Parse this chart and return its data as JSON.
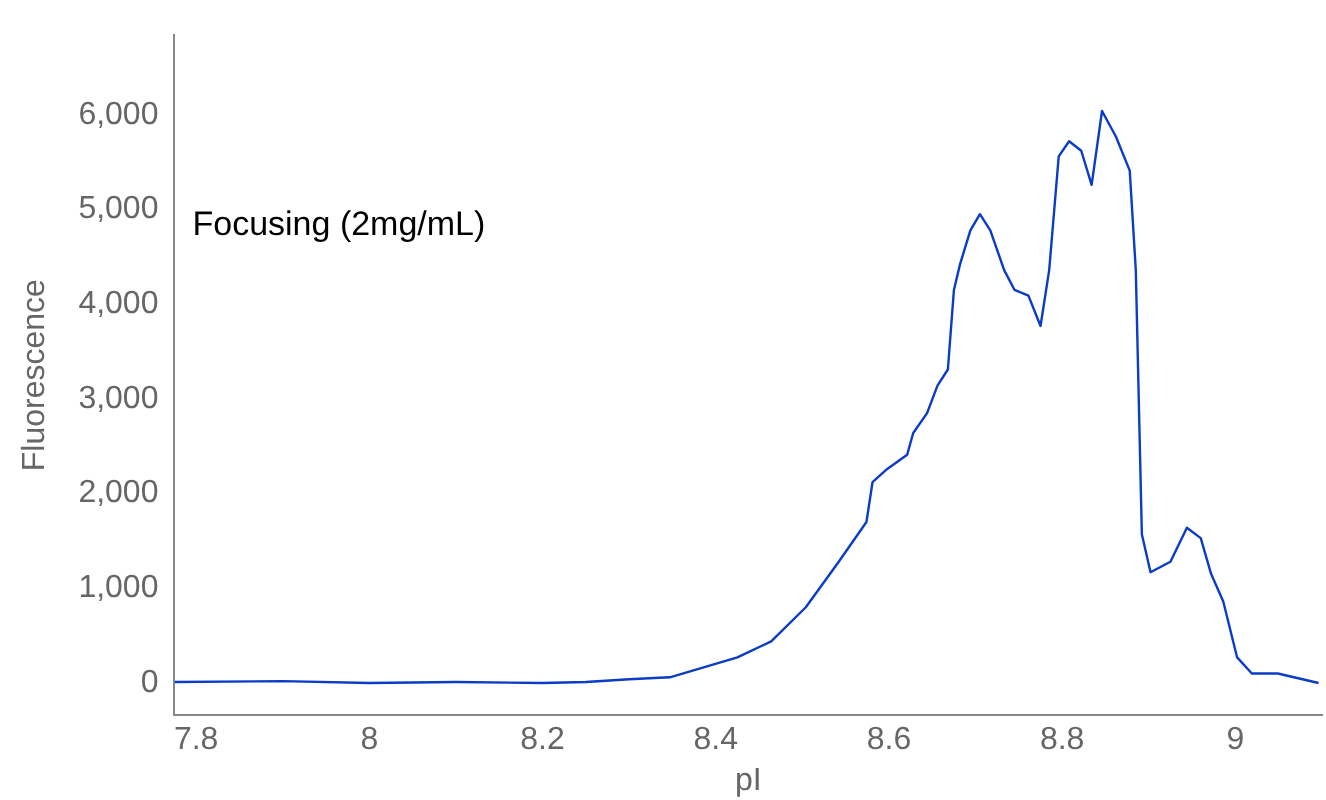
{
  "chart_data": {
    "type": "line",
    "xlabel": "pI",
    "ylabel": "Fluorescence",
    "annotations": [
      "Focusing (2mg/mL)"
    ],
    "xlim": [
      7.775,
      9.1
    ],
    "xticks": [
      {
        "value": 7.8,
        "label": "7.8"
      },
      8,
      {
        "value": 8.2,
        "label": "8.2"
      },
      {
        "value": 8.4,
        "label": "8.4"
      },
      {
        "value": 8.6,
        "label": "8.6"
      },
      {
        "value": 8.8,
        "label": "8.8"
      },
      9
    ],
    "ylim": [
      -340,
      6840
    ],
    "yticks": [
      0,
      {
        "value": 1000,
        "label": "1,000"
      },
      {
        "value": 2000,
        "label": "2,000"
      },
      {
        "value": 3000,
        "label": "3,000"
      },
      {
        "value": 4000,
        "label": "4,000"
      },
      {
        "value": 5000,
        "label": "5,000"
      },
      {
        "value": 6000,
        "label": "6,000"
      }
    ],
    "grid": false,
    "legend": false,
    "marker": "none",
    "line_style": "solid",
    "series": [
      {
        "color": "#0a3cc8",
        "x": [
          7.775,
          7.9,
          8.0,
          8.1,
          8.2,
          8.25,
          8.3,
          8.347,
          8.425,
          8.464,
          8.504,
          8.542,
          8.574,
          8.581,
          8.598,
          8.621,
          8.628,
          8.644,
          8.656,
          8.668,
          8.675,
          8.682,
          8.694,
          8.705,
          8.717,
          8.733,
          8.745,
          8.761,
          8.775,
          8.785,
          8.796,
          8.808,
          8.822,
          8.834,
          8.846,
          8.862,
          8.878,
          8.885,
          8.892,
          8.902,
          8.925,
          8.944,
          8.96,
          8.972,
          8.986,
          9.002,
          9.019,
          9.049,
          9.096
        ],
        "values": [
          10,
          20,
          0,
          10,
          0,
          10,
          40,
          60,
          270,
          440,
          800,
          1280,
          1700,
          2120,
          2260,
          2410,
          2640,
          2850,
          3140,
          3310,
          4150,
          4420,
          4780,
          4950,
          4780,
          4360,
          4150,
          4090,
          3770,
          4360,
          5560,
          5720,
          5620,
          5260,
          6040,
          5770,
          5410,
          4360,
          1570,
          1170,
          1280,
          1640,
          1530,
          1150,
          860,
          270,
          100,
          100,
          0
        ]
      }
    ]
  }
}
